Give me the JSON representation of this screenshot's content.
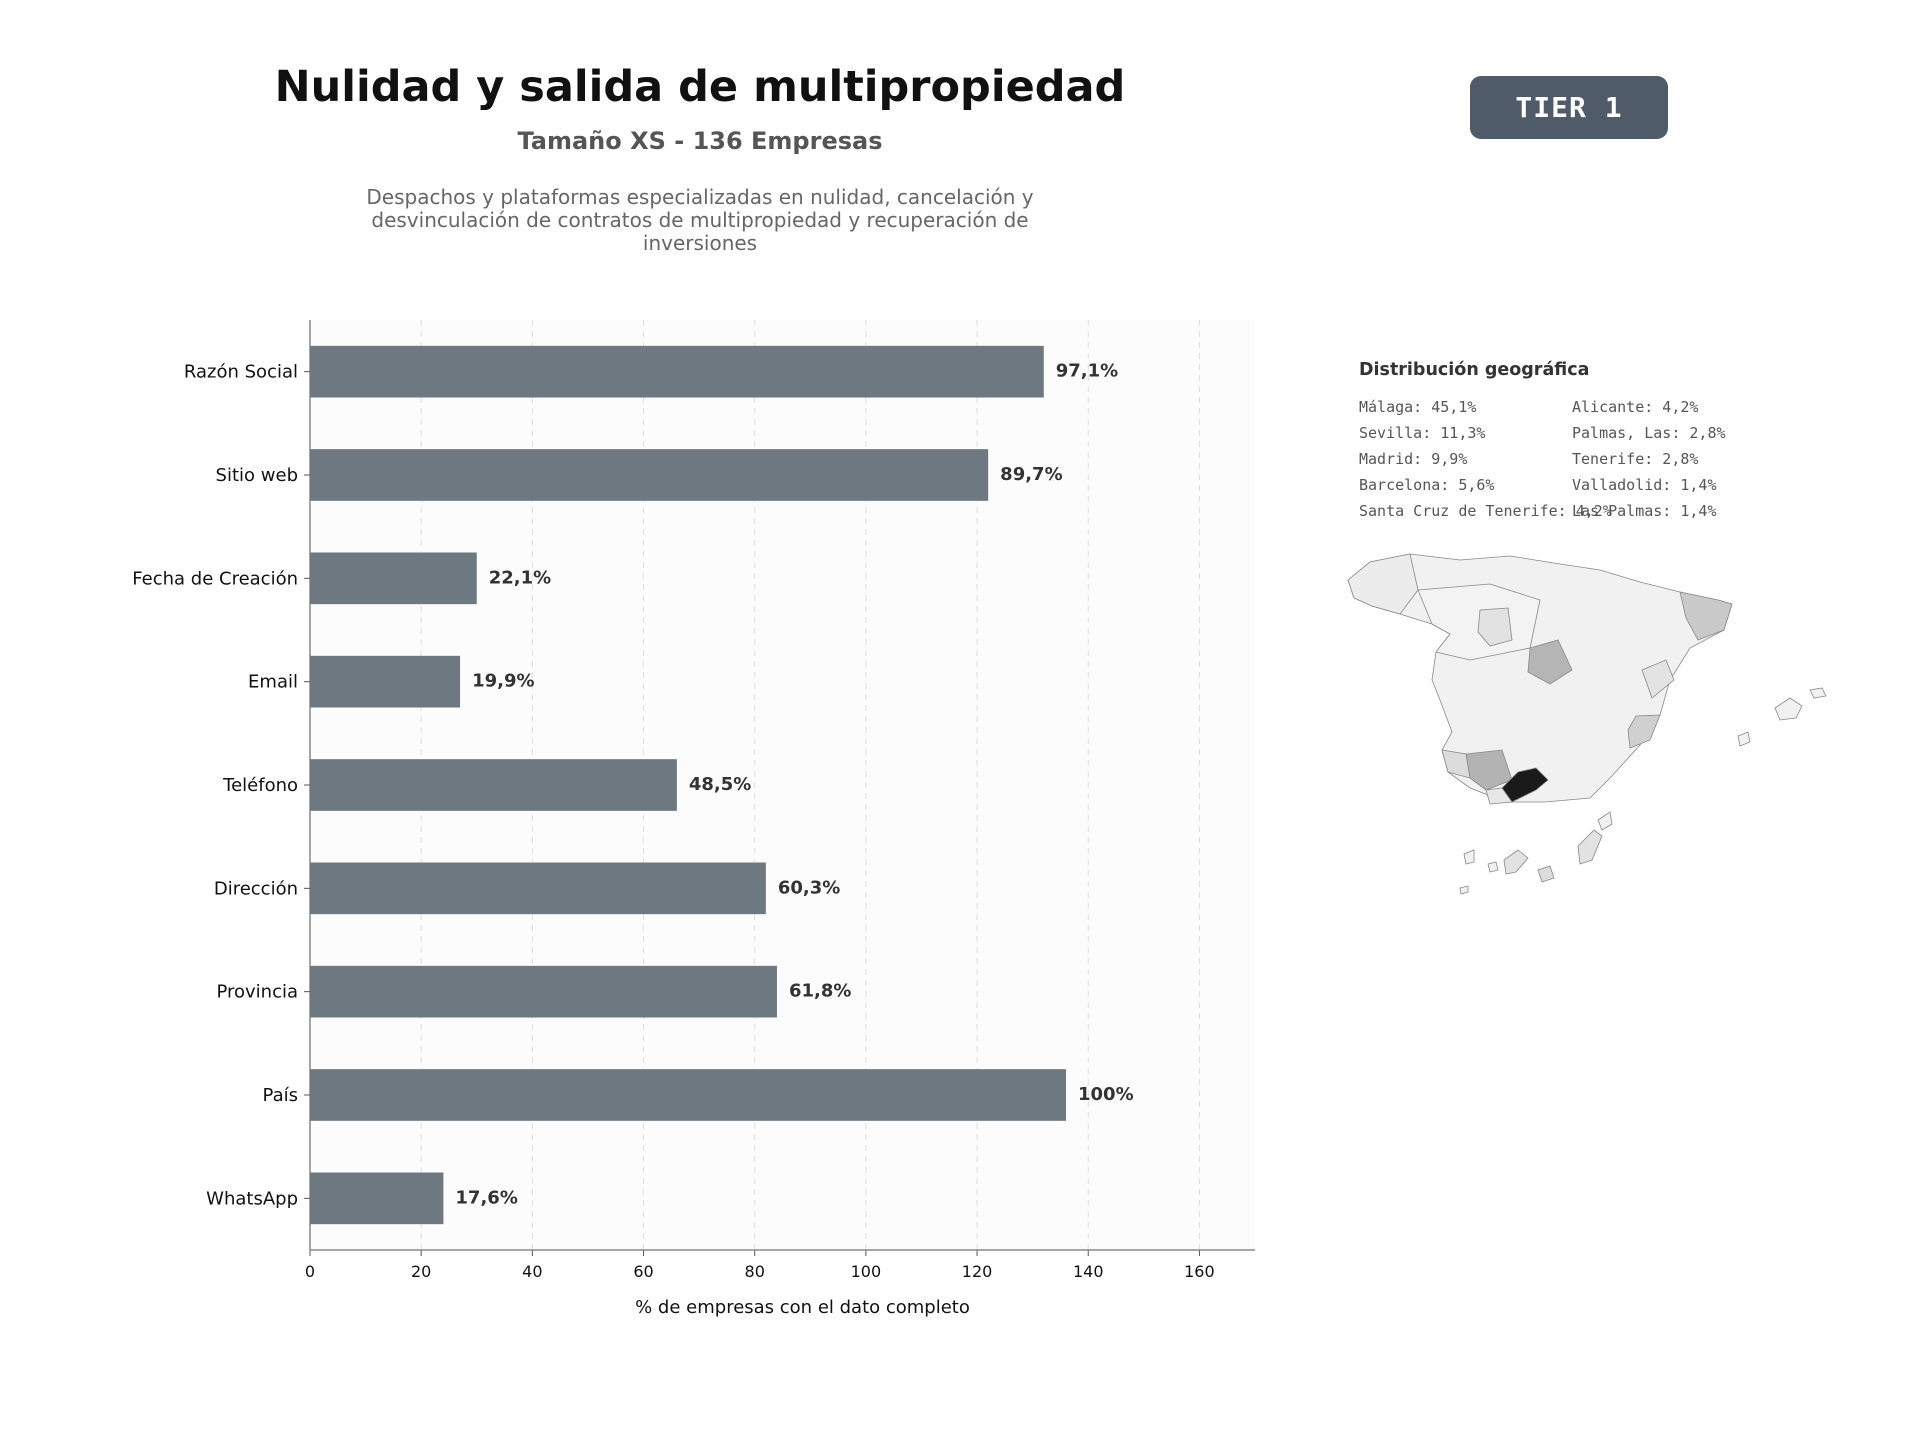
{
  "header": {
    "title": "Nulidad y salida de multipropiedad",
    "subtitle": "Tamaño XS - 136 Empresas",
    "description": "Despachos y plataformas especializadas en nulidad, cancelación y desvinculación de contratos de multipropiedad y recuperación de inversiones",
    "tier_badge": "TIER 1"
  },
  "colors": {
    "bar": "#6e7881",
    "badge": "#4f5b68",
    "plot_background": "#fcfcfc",
    "map_highlight": "#1a1a1a"
  },
  "chart_data": {
    "type": "bar",
    "orientation": "horizontal",
    "categories": [
      "Razón Social",
      "Sitio web",
      "Fecha de Creación",
      "Email",
      "Teléfono",
      "Dirección",
      "Provincia",
      "País",
      "WhatsApp"
    ],
    "values": [
      132,
      122,
      30,
      27,
      66,
      82,
      84,
      136,
      24
    ],
    "labels": [
      "97,1%",
      "89,7%",
      "22,1%",
      "19,9%",
      "48,5%",
      "60,3%",
      "61,8%",
      "100%",
      "17,6%"
    ],
    "xlabel": "% de empresas con el dato completo",
    "xlim": [
      0,
      170
    ],
    "xticks": [
      0,
      20,
      40,
      60,
      80,
      100,
      120,
      140,
      160
    ],
    "grid": "vertical dashed"
  },
  "geo": {
    "title": "Distribución geográfica",
    "col1": [
      "Málaga: 45,1%",
      "Sevilla: 11,3%",
      "Madrid: 9,9%",
      "Barcelona: 5,6%",
      "Santa Cruz de Tenerife: 4,2%"
    ],
    "col2": [
      "Alicante: 4,2%",
      "Palmas, Las: 2,8%",
      "Tenerife: 2,8%",
      "Valladolid: 1,4%",
      "Las Palmas: 1,4%"
    ]
  }
}
